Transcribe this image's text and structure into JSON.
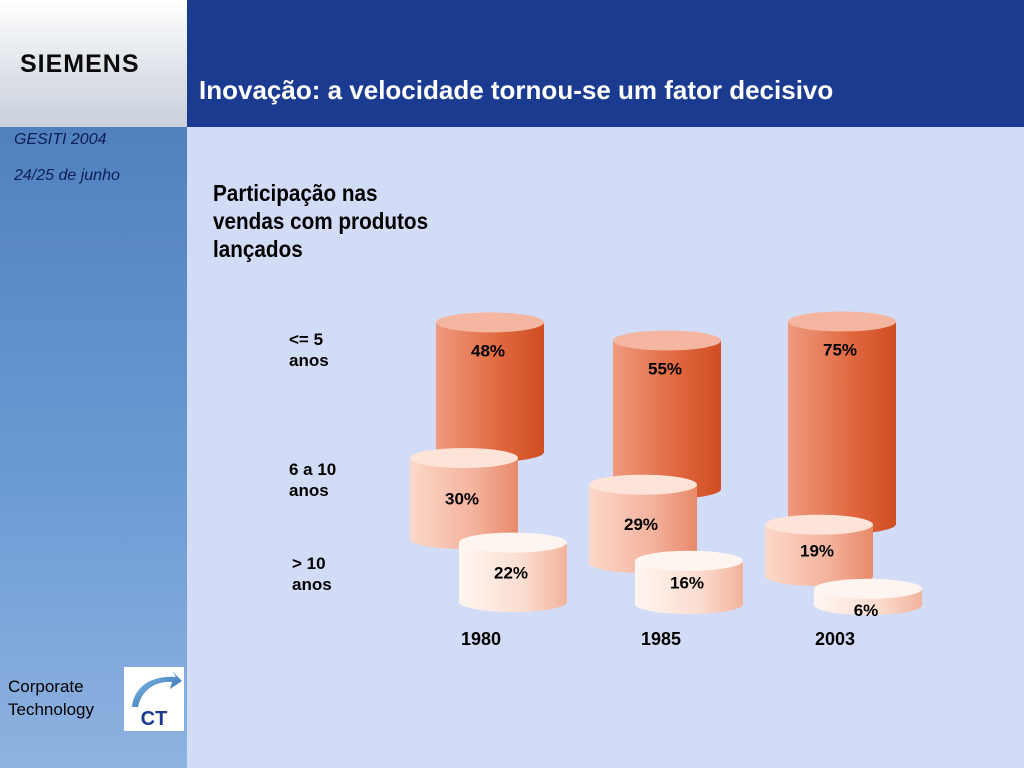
{
  "header": {
    "brand": "SIEMENS",
    "title": "Inovação: a velocidade tornou-se um fator decisivo"
  },
  "sidebar": {
    "event": "GESITI 2004",
    "date": "24/25 de junho",
    "footer_line1": "Corporate",
    "footer_line2": "Technology",
    "logo_text": "CT"
  },
  "colors": {
    "header": "#1a3b8f",
    "background": "#d3dcf6",
    "cylinder_dark": "#d95a30",
    "cylinder_mid": "#ef9e83",
    "cylinder_light": "#fde7dd"
  },
  "chart_data": {
    "type": "bar",
    "title": "Participação nas vendas com produtos lançados",
    "categories": [
      "1980",
      "1985",
      "2003"
    ],
    "row_labels": [
      [
        "<= 5",
        "anos"
      ],
      [
        "6 a 10",
        "anos"
      ],
      [
        "> 10",
        "anos"
      ]
    ],
    "series": [
      {
        "name": "<= 5 anos",
        "values": [
          48,
          55,
          75
        ],
        "labels": [
          "48%",
          "55%",
          "75%"
        ]
      },
      {
        "name": "6 a 10 anos",
        "values": [
          30,
          29,
          19
        ],
        "labels": [
          "30%",
          "29%",
          "19%"
        ]
      },
      {
        "name": "> 10 anos",
        "values": [
          22,
          16,
          6
        ],
        "labels": [
          "22%",
          "16%",
          "6%"
        ]
      }
    ],
    "unit": "%"
  }
}
